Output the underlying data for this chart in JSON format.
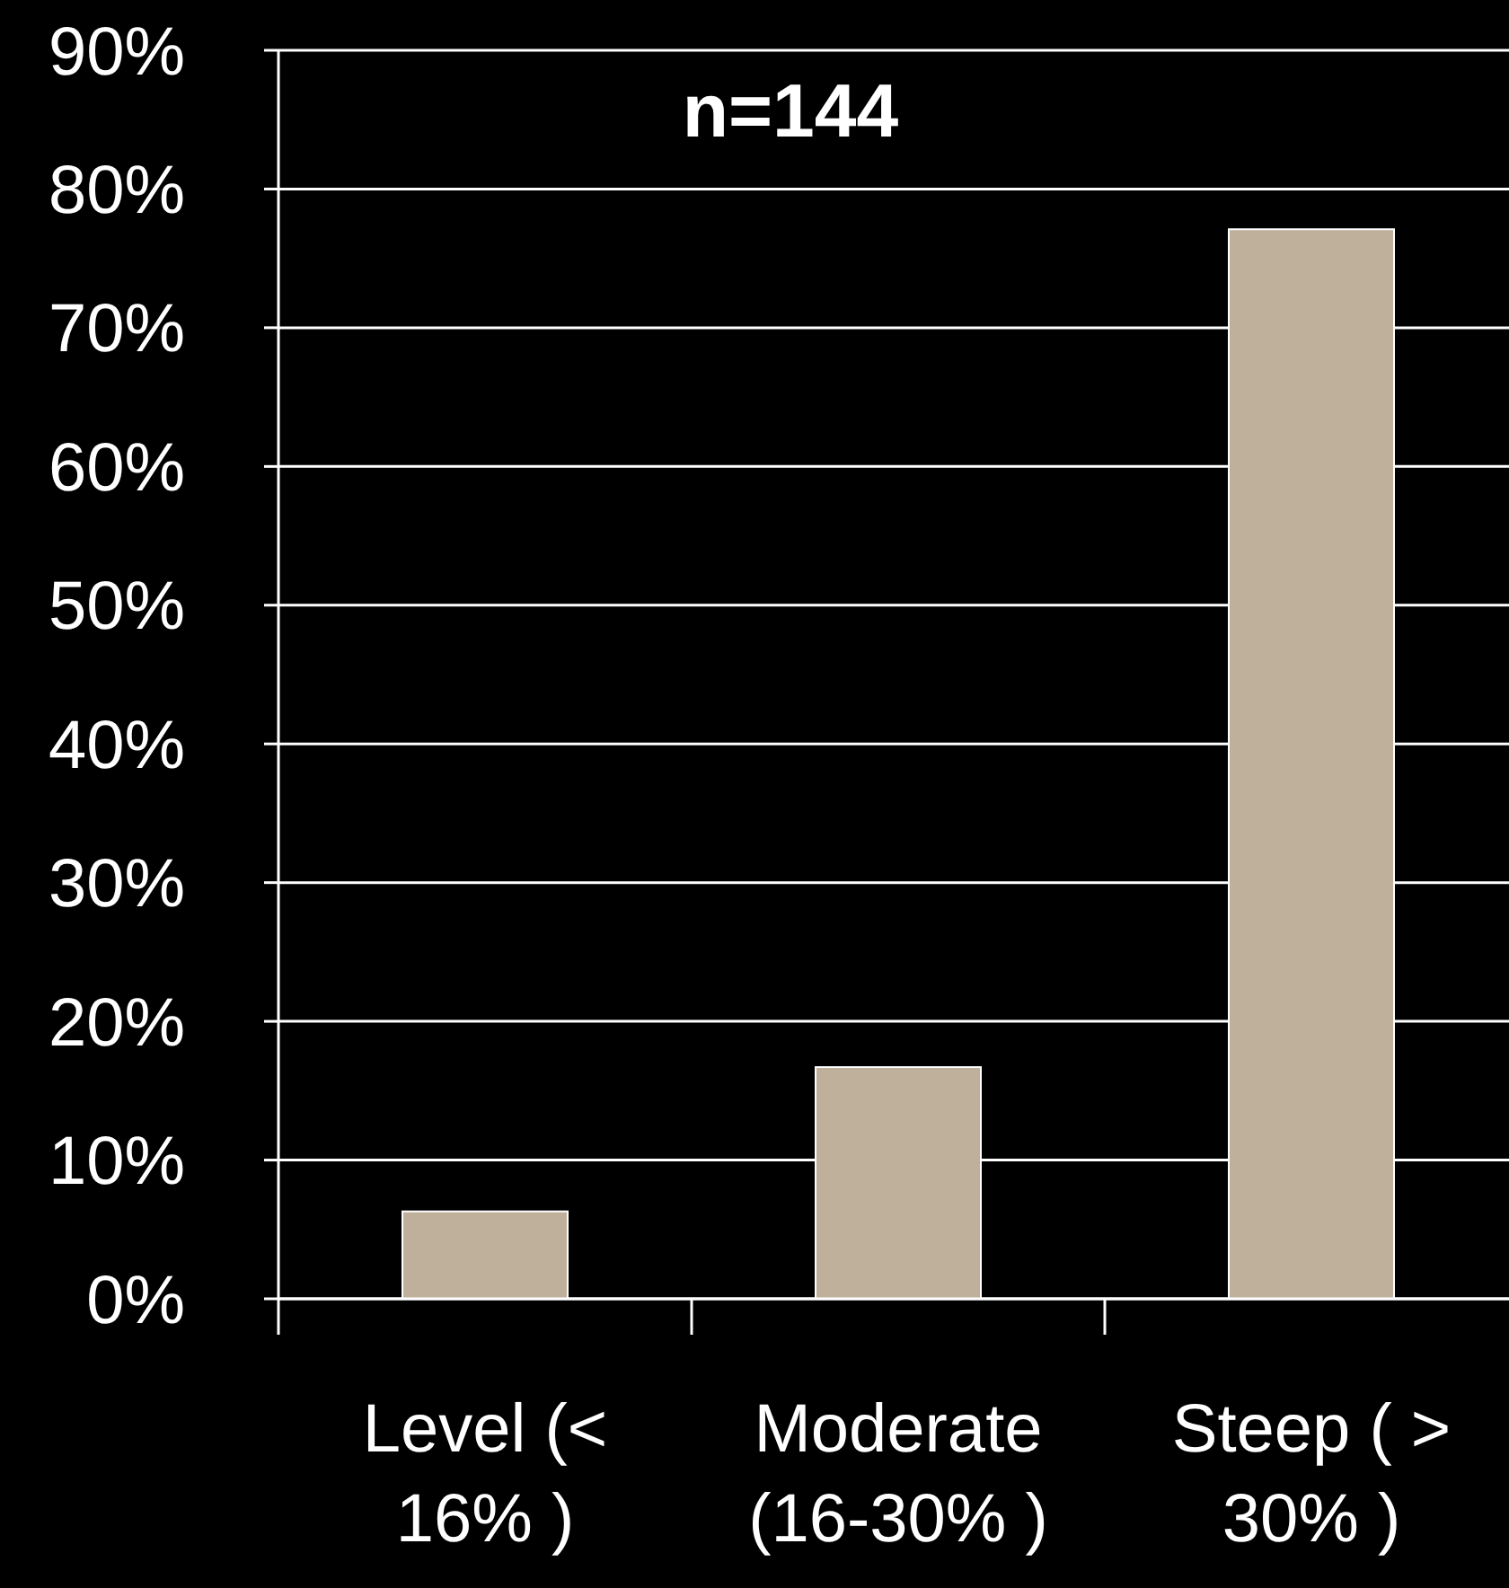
{
  "chart_data": {
    "type": "bar",
    "title": "n=144",
    "categories": [
      "Level (< 16% )",
      "Moderate (16-30% )",
      "Steep ( > 30% )"
    ],
    "values": [
      6.3,
      16.7,
      77.1
    ],
    "color": "#bfb09b",
    "ylim": [
      0,
      90
    ],
    "yticks": [
      {
        "value": 0,
        "label": "0%"
      },
      {
        "value": 10,
        "label": "10%"
      },
      {
        "value": 20,
        "label": "20%"
      },
      {
        "value": 30,
        "label": "30%"
      },
      {
        "value": 40,
        "label": "40%"
      },
      {
        "value": 50,
        "label": "50%"
      },
      {
        "value": 60,
        "label": "60%"
      },
      {
        "value": 70,
        "label": "70%"
      },
      {
        "value": 80,
        "label": "80%"
      },
      {
        "value": 90,
        "label": "90%"
      }
    ],
    "grid": "y"
  }
}
